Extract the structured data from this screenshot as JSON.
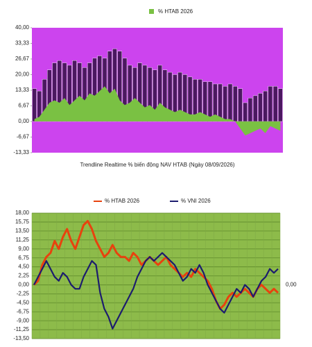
{
  "chart_data": [
    {
      "type": "bar-area",
      "ylim": [
        -13.33,
        40
      ],
      "yticks": [
        {
          "value": 40,
          "label": "40,00"
        },
        {
          "value": 33.33,
          "label": "33,33"
        },
        {
          "value": 26.67,
          "label": "26,67"
        },
        {
          "value": 20,
          "label": "20,00"
        },
        {
          "value": 13.33,
          "label": "13,33"
        },
        {
          "value": 6.67,
          "label": "6,67"
        },
        {
          "value": 0,
          "label": "0,00"
        },
        {
          "value": -6.67,
          "label": "-6,67"
        },
        {
          "value": -13.33,
          "label": "-13,33"
        }
      ],
      "background": "#cc44ee",
      "series": [
        {
          "color": "#4b1860",
          "values": [
            14,
            13,
            18,
            22,
            25,
            26,
            25,
            24,
            26,
            25,
            23,
            25,
            27,
            28,
            27,
            30,
            31,
            30,
            27,
            24,
            23,
            25,
            24,
            23,
            22,
            24,
            22,
            21,
            20,
            21,
            20,
            19,
            18,
            18,
            17,
            17,
            16,
            16,
            15,
            16,
            15,
            14,
            8,
            10,
            11,
            12,
            13,
            15,
            15,
            14
          ]
        },
        {
          "name": "% HTAB 2026",
          "color": "#7ac143",
          "values": [
            1,
            2,
            5,
            8,
            9,
            8,
            10,
            7,
            9,
            11,
            9,
            12,
            11,
            13,
            15,
            12,
            14,
            9,
            7,
            8,
            10,
            8,
            6,
            7,
            5,
            8,
            6,
            5,
            4,
            5,
            4,
            3,
            3,
            4,
            3,
            2,
            3,
            2,
            1,
            1,
            0,
            -3,
            -6,
            -5,
            -4,
            -3,
            -5,
            -2,
            -3,
            -4
          ]
        }
      ],
      "subtitle": "Trendline Realtime % biến động NAV HTAB (Ngày 08/09/2026)"
    },
    {
      "type": "line",
      "ylim": [
        -13.5,
        18
      ],
      "yticks": [
        {
          "value": 18,
          "label": "18,00"
        },
        {
          "value": 15.75,
          "label": "15,75"
        },
        {
          "value": 13.5,
          "label": "13,50"
        },
        {
          "value": 11.25,
          "label": "11,25"
        },
        {
          "value": 9,
          "label": "9,00"
        },
        {
          "value": 6.75,
          "label": "6,75"
        },
        {
          "value": 4.5,
          "label": "4,50"
        },
        {
          "value": 2.25,
          "label": "2,25"
        },
        {
          "value": 0,
          "label": "0,00"
        },
        {
          "value": -2.25,
          "label": "-2,25"
        },
        {
          "value": -4.5,
          "label": "-4,50"
        },
        {
          "value": -6.75,
          "label": "-6,75"
        },
        {
          "value": -9,
          "label": "-9,00"
        },
        {
          "value": -11.25,
          "label": "-11,25"
        },
        {
          "value": -13.5,
          "label": "-13,50"
        }
      ],
      "background": "#8dbb4a",
      "grid": true,
      "annotation": "0,00",
      "series": [
        {
          "name": "% HTAB 2026",
          "color": "#e8420e",
          "values": [
            0,
            1,
            5,
            7,
            8,
            11,
            9,
            12,
            14,
            11,
            9,
            12,
            15,
            16,
            14,
            11,
            9,
            7,
            8,
            10,
            8,
            7,
            7,
            6,
            8,
            7,
            5,
            6,
            7,
            6,
            5,
            6,
            7,
            5,
            4,
            3,
            2,
            3,
            2,
            4,
            3,
            2,
            1,
            -1,
            -4,
            -6,
            -5,
            -3,
            -2,
            -3,
            -2,
            -1,
            -2,
            -3,
            -1,
            0,
            -1,
            -2,
            -1,
            -2
          ]
        },
        {
          "name": "% VNI 2026",
          "color": "#1c1c6e",
          "values": [
            0,
            2,
            4,
            6,
            4,
            2,
            1,
            3,
            2,
            0,
            -1,
            -1,
            2,
            4,
            6,
            5,
            -2,
            -6,
            -8,
            -11,
            -9,
            -7,
            -5,
            -3,
            -1,
            2,
            4,
            6,
            7,
            6,
            7,
            8,
            7,
            6,
            5,
            3,
            1,
            2,
            4,
            3,
            5,
            3,
            0,
            -2,
            -4,
            -6,
            -7,
            -5,
            -3,
            -1,
            -2,
            0,
            -1,
            -3,
            -1,
            1,
            2,
            4,
            3,
            4
          ]
        }
      ]
    }
  ]
}
